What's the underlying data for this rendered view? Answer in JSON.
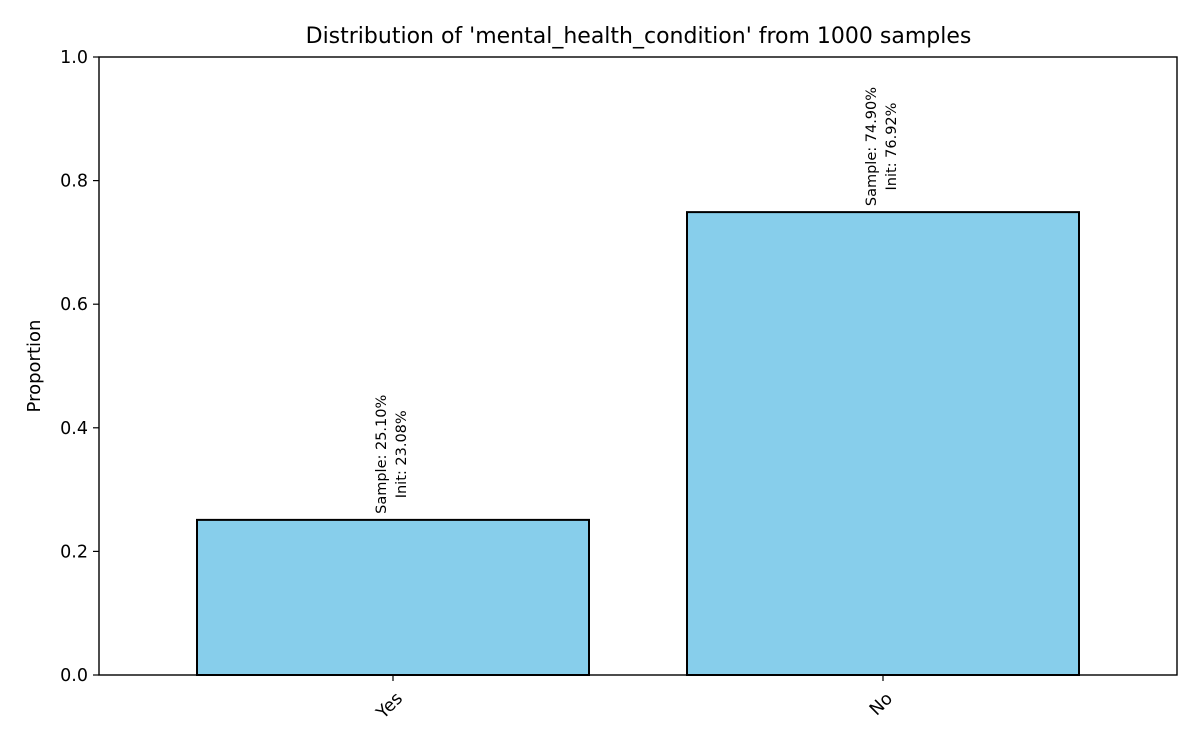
{
  "chart_data": {
    "type": "bar",
    "title": "Distribution of 'mental_health_condition' from 1000 samples",
    "xlabel": "",
    "ylabel": "Proportion",
    "categories": [
      "Yes",
      "No"
    ],
    "values": [
      0.251,
      0.749
    ],
    "bar_labels": [
      [
        "Sample: 25.10%",
        "Init: 23.08%"
      ],
      [
        "Sample: 74.90%",
        "Init: 76.92%"
      ]
    ],
    "ylim": [
      0,
      1.0
    ],
    "yticks": [
      "0.0",
      "0.2",
      "0.4",
      "0.6",
      "0.8",
      "1.0"
    ],
    "bar_color": "#87CEEB",
    "bar_edge_color": "#000000",
    "grid": false,
    "legend": "none"
  }
}
